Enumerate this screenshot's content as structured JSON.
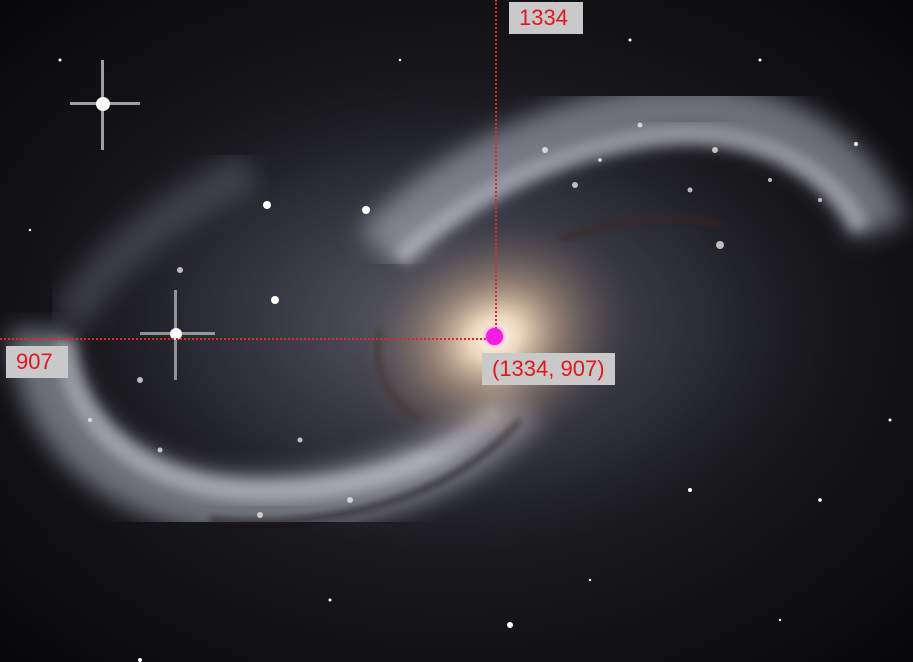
{
  "annotation": {
    "x_value": "1334",
    "y_value": "907",
    "point_label": "(1334, 907)",
    "line_color": "#e0282c",
    "marker_color": "#f01fe0",
    "label_background": "#c9c9c9",
    "label_text_color": "#e3161c"
  }
}
